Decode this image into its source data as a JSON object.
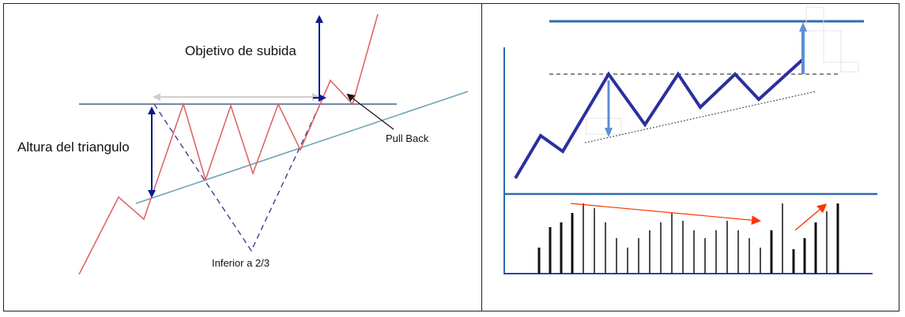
{
  "left_panel": {
    "target_label": "Objetivo de subida",
    "height_label": "Altura del triangulo",
    "pullback_label": "Pull Back",
    "inferior_label": "Inferior a 2/3"
  },
  "colors": {
    "price_line": "#e06666",
    "trend_line": "#6fa3b8",
    "resistance_line": "#1f3f73",
    "arrow": "#0a1a8c",
    "right_price": "#2b2f9e",
    "right_axis": "#2e6cb0",
    "volume_trend": "#ff3300"
  }
}
